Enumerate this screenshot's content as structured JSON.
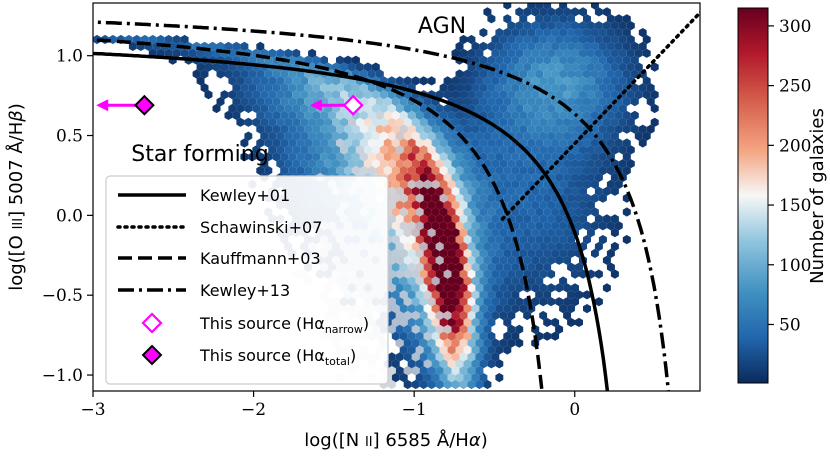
{
  "chart_data": {
    "type": "scatter",
    "title": "",
    "xlabel": "log([N II] 6585 Å/Hα)",
    "ylabel": "log([O III] 5007 Å/Hβ)",
    "xlim": [
      -3.0,
      0.78
    ],
    "ylim": [
      -1.1,
      1.33
    ],
    "x_ticks": [
      {
        "value": -3,
        "label": "−3"
      },
      {
        "value": -2,
        "label": "−2"
      },
      {
        "value": -1,
        "label": "−1"
      },
      {
        "value": 0,
        "label": "0"
      }
    ],
    "y_ticks": [
      {
        "value": -1.0,
        "label": "−1.0"
      },
      {
        "value": -0.5,
        "label": "−0.5"
      },
      {
        "value": 0.0,
        "label": "0.0"
      },
      {
        "value": 0.5,
        "label": "0.5"
      },
      {
        "value": 1.0,
        "label": "1.0"
      }
    ],
    "region_labels": [
      {
        "text": "AGN",
        "x": -1.0,
        "y": 1.17
      },
      {
        "text": "Star forming",
        "x": -2.13,
        "y": 0.36
      }
    ],
    "density": {
      "description": "hexbin density of galaxies",
      "colorbar_label": "Number of galaxies",
      "range": [
        1,
        315
      ],
      "colorbar_ticks": [
        {
          "value": 50,
          "label": "50"
        },
        {
          "value": 100,
          "label": "100"
        },
        {
          "value": 150,
          "label": "150"
        },
        {
          "value": 200,
          "label": "200"
        },
        {
          "value": 250,
          "label": "250"
        },
        {
          "value": 300,
          "label": "300"
        }
      ],
      "colormap": [
        "#0b2a5c",
        "#2166ac",
        "#4393c3",
        "#92c5de",
        "#f7f7f7",
        "#f4a582",
        "#d6604d",
        "#b2182b",
        "#67001f"
      ]
    },
    "series": [
      {
        "name": "Kewley+01",
        "style": "solid",
        "relation": "y = 0.61/(x - 0.47) + 1.19"
      },
      {
        "name": "Schawinski+07",
        "style": "dotted",
        "relation": "y = 1.05x + 0.45"
      },
      {
        "name": "Kauffmann+03",
        "style": "dashed",
        "relation": "y = 0.61/(x - 0.05) + 1.30"
      },
      {
        "name": "Kewley+13",
        "style": "dashdot",
        "relation": "y = 0.61/(x - 0.83) + 1.37"
      },
      {
        "name": "This source (Hα_narrow)",
        "style": "open-diamond",
        "color": "#ff00ff",
        "x": -1.38,
        "y": 0.69,
        "upper_limit_arrow_to_x": -1.65
      },
      {
        "name": "This source (Hα_total)",
        "style": "filled-diamond",
        "color": "#ff00ff",
        "x": -2.68,
        "y": 0.69,
        "upper_limit_arrow_to_x": -2.98
      }
    ],
    "legend": {
      "position": "lower-left",
      "entries": [
        {
          "label": "Kewley+01",
          "style": "solid"
        },
        {
          "label": "Schawinski+07",
          "style": "dotted"
        },
        {
          "label": "Kauffmann+03",
          "style": "dashed"
        },
        {
          "label": "Kewley+13",
          "style": "dashdot"
        },
        {
          "label": "This source (Hα",
          "sub": "narrow",
          "close": ")",
          "style": "open-diamond"
        },
        {
          "label": "This source (Hα",
          "sub": "total",
          "close": ")",
          "style": "filled-diamond"
        }
      ]
    }
  }
}
